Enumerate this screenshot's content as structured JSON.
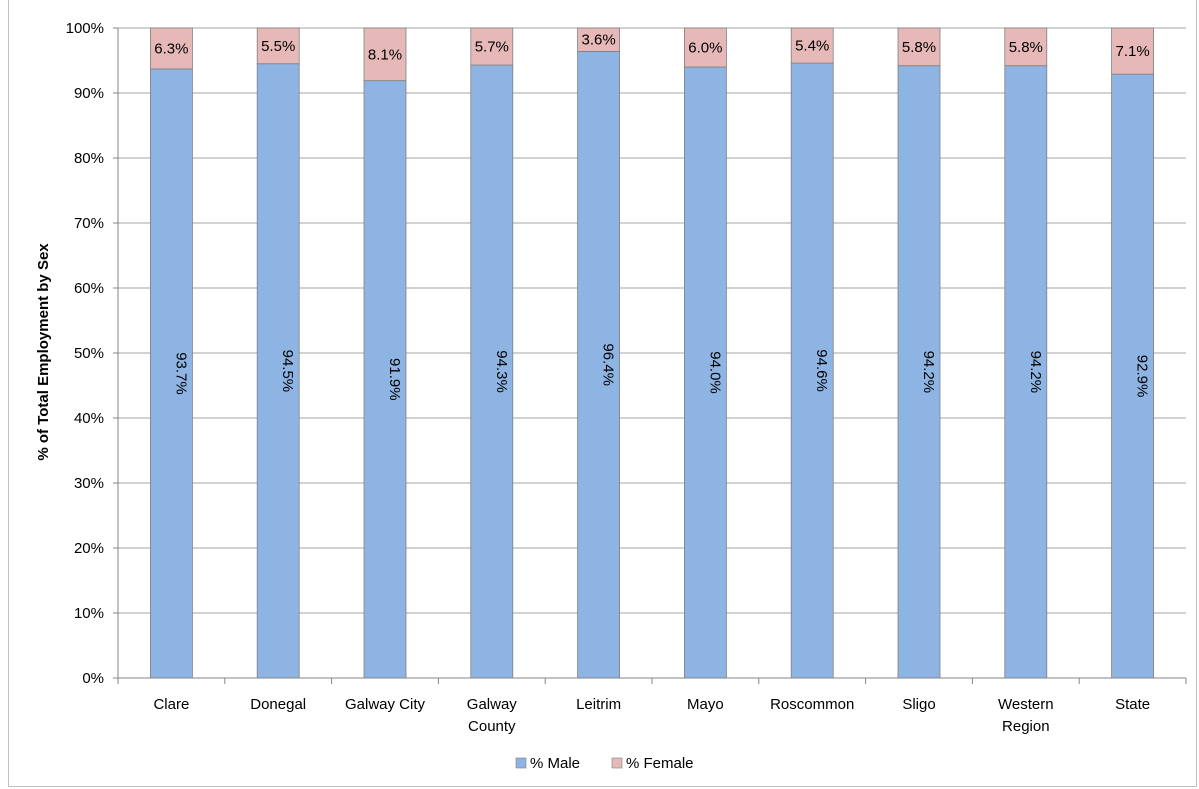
{
  "chart_data": {
    "type": "bar",
    "stacked": true,
    "categories": [
      "Clare",
      "Donegal",
      "Galway City",
      "Galway County",
      "Leitrim",
      "Mayo",
      "Roscommon",
      "Sligo",
      "Western Region",
      "State"
    ],
    "category_lines": [
      [
        "Clare"
      ],
      [
        "Donegal"
      ],
      [
        "Galway City"
      ],
      [
        "Galway",
        "County"
      ],
      [
        "Leitrim"
      ],
      [
        "Mayo"
      ],
      [
        "Roscommon"
      ],
      [
        "Sligo"
      ],
      [
        "Western",
        "Region"
      ],
      [
        "State"
      ]
    ],
    "series": [
      {
        "name": "% Male",
        "color": "#8eb4e3",
        "values": [
          93.7,
          94.5,
          91.9,
          94.3,
          96.4,
          94.0,
          94.6,
          94.2,
          94.2,
          92.9
        ],
        "labels": [
          "93.7%",
          "94.5%",
          "91.9%",
          "94.3%",
          "96.4%",
          "94.0%",
          "94.6%",
          "94.2%",
          "94.2%",
          "92.9%"
        ]
      },
      {
        "name": "% Female",
        "color": "#e6b9b8",
        "values": [
          6.3,
          5.5,
          8.1,
          5.7,
          3.6,
          6.0,
          5.4,
          5.8,
          5.8,
          7.1
        ],
        "labels": [
          "6.3%",
          "5.5%",
          "8.1%",
          "5.7%",
          "3.6%",
          "6.0%",
          "5.4%",
          "5.8%",
          "5.8%",
          "7.1%"
        ]
      }
    ],
    "ylabel": "% of Total Employment by Sex",
    "xlabel": "",
    "ylim": [
      0,
      100
    ],
    "yticks": [
      0,
      10,
      20,
      30,
      40,
      50,
      60,
      70,
      80,
      90,
      100
    ],
    "ytick_labels": [
      "0%",
      "10%",
      "20%",
      "30%",
      "40%",
      "50%",
      "60%",
      "70%",
      "80%",
      "90%",
      "100%"
    ],
    "grid": true,
    "legend_position": "bottom",
    "bar_border_color": "#7f7f7f",
    "grid_color": "#a6a6a6"
  }
}
